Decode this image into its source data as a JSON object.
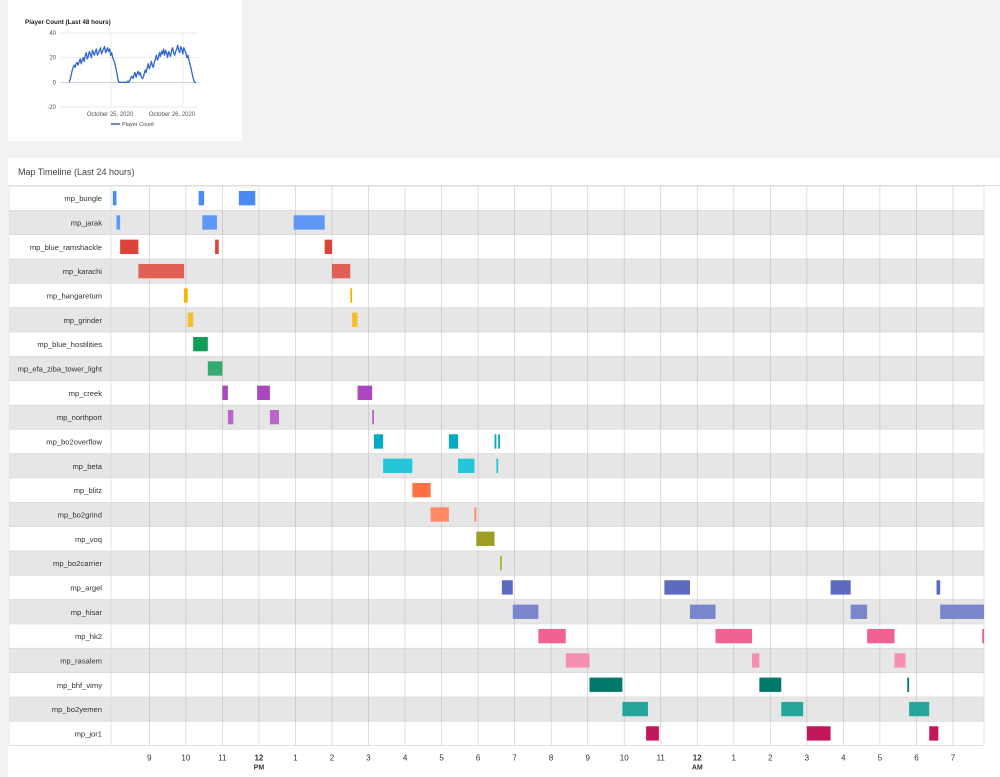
{
  "player_panel": {
    "chart_data": {
      "type": "line",
      "title": "Player Count (Last 48 hours)",
      "legend": "Player Count",
      "legend_position": "bottom",
      "y_ticks": [
        "40",
        "20",
        "0",
        "-20"
      ],
      "ylim": [
        -20,
        40
      ],
      "x_tick_labels": [
        "October 25, 2020",
        "October 26, 2020"
      ],
      "series": [
        {
          "name": "Player Count",
          "color": "#3366cc",
          "values": [
            0,
            2,
            5,
            9,
            12,
            14,
            12,
            15,
            16,
            14,
            17,
            19,
            15,
            18,
            20,
            17,
            22,
            24,
            19,
            21,
            25,
            23,
            20,
            26,
            24,
            22,
            25,
            27,
            22,
            24,
            26,
            28,
            23,
            25,
            27,
            29,
            24,
            26,
            28,
            25,
            27,
            22,
            24,
            20,
            18,
            16,
            12,
            8,
            3,
            0,
            0,
            0,
            0,
            0,
            0,
            0,
            0,
            0,
            1,
            0,
            2,
            4,
            5,
            3,
            6,
            8,
            4,
            7,
            9,
            6,
            8,
            5,
            3,
            4,
            7,
            10,
            8,
            12,
            15,
            11,
            13,
            17,
            14,
            12,
            16,
            19,
            22,
            18,
            20,
            24,
            21,
            25,
            23,
            27,
            22,
            26,
            24,
            20,
            25,
            23,
            21,
            26,
            28,
            24,
            22,
            25,
            27,
            30,
            26,
            24,
            29,
            27,
            23,
            28,
            26,
            24,
            20,
            22,
            18,
            15,
            12,
            8,
            4,
            1,
            0,
            0
          ]
        }
      ]
    }
  },
  "timeline_panel": {
    "title": "Map Timeline (Last 24 hours)",
    "chart_data": {
      "type": "bar",
      "subtype": "timeline",
      "x_ticks": [
        {
          "label": "9",
          "h": 9
        },
        {
          "label": "10",
          "h": 10
        },
        {
          "label": "11",
          "h": 11
        },
        {
          "label": "12",
          "h": 12,
          "sub": "PM"
        },
        {
          "label": "1",
          "h": 13
        },
        {
          "label": "2",
          "h": 14
        },
        {
          "label": "3",
          "h": 15
        },
        {
          "label": "4",
          "h": 16
        },
        {
          "label": "5",
          "h": 17
        },
        {
          "label": "6",
          "h": 18
        },
        {
          "label": "7",
          "h": 19
        },
        {
          "label": "8",
          "h": 20
        },
        {
          "label": "9",
          "h": 21
        },
        {
          "label": "10",
          "h": 22
        },
        {
          "label": "11",
          "h": 23
        },
        {
          "label": "12",
          "h": 24,
          "sub": "AM"
        },
        {
          "label": "1",
          "h": 25
        },
        {
          "label": "2",
          "h": 26
        },
        {
          "label": "3",
          "h": 27
        },
        {
          "label": "4",
          "h": 28
        },
        {
          "label": "5",
          "h": 29
        },
        {
          "label": "6",
          "h": 30
        },
        {
          "label": "7",
          "h": 31
        }
      ],
      "xlim": [
        7.95,
        31.85
      ],
      "rows": [
        {
          "label": "mp_bungle",
          "color": "#4a8af4",
          "segments": [
            [
              8.0,
              8.1
            ],
            [
              10.35,
              10.5
            ],
            [
              11.45,
              11.9
            ]
          ]
        },
        {
          "label": "mp_jarak",
          "color": "#5e97f6",
          "segments": [
            [
              8.1,
              8.2
            ],
            [
              10.45,
              10.85
            ],
            [
              12.95,
              13.8
            ]
          ]
        },
        {
          "label": "mp_blue_ramshackle",
          "color": "#db4437",
          "segments": [
            [
              8.2,
              8.7
            ],
            [
              10.8,
              10.9
            ],
            [
              13.8,
              14.0
            ]
          ]
        },
        {
          "label": "mp_karachi",
          "color": "#e06055",
          "segments": [
            [
              8.7,
              9.95
            ],
            [
              14.0,
              14.5
            ]
          ]
        },
        {
          "label": "mp_hangaretum",
          "color": "#f4b400",
          "segments": [
            [
              9.95,
              10.05
            ],
            [
              14.5,
              14.55
            ]
          ]
        },
        {
          "label": "mp_grinder",
          "color": "#f6bf26",
          "segments": [
            [
              10.05,
              10.2
            ],
            [
              14.55,
              14.7
            ]
          ]
        },
        {
          "label": "mp_blue_hostilities",
          "color": "#0f9d58",
          "segments": [
            [
              10.2,
              10.6
            ]
          ]
        },
        {
          "label": "mp_efa_ziba_tower_light",
          "color": "#33ac71",
          "segments": [
            [
              10.6,
              11.0
            ]
          ]
        },
        {
          "label": "mp_creek",
          "color": "#ab47bc",
          "segments": [
            [
              11.0,
              11.15
            ],
            [
              11.95,
              12.3
            ],
            [
              14.7,
              15.1
            ]
          ]
        },
        {
          "label": "mp_northport",
          "color": "#ba68c8",
          "segments": [
            [
              11.15,
              11.3
            ],
            [
              12.3,
              12.55
            ],
            [
              15.1,
              15.15
            ]
          ]
        },
        {
          "label": "mp_bo2overflow",
          "color": "#00acc1",
          "segments": [
            [
              15.15,
              15.4
            ],
            [
              17.2,
              17.45
            ],
            [
              18.45,
              18.5
            ],
            [
              18.55,
              18.6
            ]
          ]
        },
        {
          "label": "mp_beta",
          "color": "#26c6da",
          "segments": [
            [
              15.4,
              16.2
            ],
            [
              17.45,
              17.9
            ],
            [
              18.5,
              18.55
            ]
          ]
        },
        {
          "label": "mp_blitz",
          "color": "#ff7043",
          "segments": [
            [
              16.2,
              16.7
            ]
          ]
        },
        {
          "label": "mp_bo2grind",
          "color": "#ff8a65",
          "segments": [
            [
              16.7,
              17.2
            ],
            [
              17.9,
              17.95
            ]
          ]
        },
        {
          "label": "mp_voq",
          "color": "#9e9d24",
          "segments": [
            [
              17.95,
              18.45
            ]
          ]
        },
        {
          "label": "mp_bo2carrier",
          "color": "#afb42b",
          "segments": [
            [
              18.6,
              18.65
            ]
          ]
        },
        {
          "label": "mp_argel",
          "color": "#5c6bc0",
          "segments": [
            [
              18.65,
              18.95
            ],
            [
              23.1,
              23.8
            ],
            [
              27.65,
              28.2
            ],
            [
              30.55,
              30.65
            ]
          ]
        },
        {
          "label": "mp_hisar",
          "color": "#7986cb",
          "segments": [
            [
              18.95,
              19.65
            ],
            [
              23.8,
              24.5
            ],
            [
              28.2,
              28.65
            ],
            [
              30.65,
              32.0
            ]
          ]
        },
        {
          "label": "mp_hk2",
          "color": "#f06292",
          "segments": [
            [
              19.65,
              20.4
            ],
            [
              24.5,
              25.5
            ],
            [
              28.65,
              29.4
            ],
            [
              31.8,
              31.85
            ]
          ]
        },
        {
          "label": "mp_rasalem",
          "color": "#f48fb1",
          "segments": [
            [
              20.4,
              21.05
            ],
            [
              25.5,
              25.7
            ],
            [
              29.4,
              29.7
            ]
          ]
        },
        {
          "label": "mp_bhf_vimy",
          "color": "#00796b",
          "segments": [
            [
              21.05,
              21.95
            ],
            [
              25.7,
              26.3
            ],
            [
              29.75,
              29.8
            ]
          ]
        },
        {
          "label": "mp_bo2yemen",
          "color": "#26a69a",
          "segments": [
            [
              21.95,
              22.65
            ],
            [
              26.3,
              26.9
            ],
            [
              29.8,
              30.35
            ]
          ]
        },
        {
          "label": "mp_jor1",
          "color": "#c2185b",
          "segments": [
            [
              22.6,
              22.95
            ],
            [
              27.0,
              27.65
            ],
            [
              30.35,
              30.6
            ]
          ]
        }
      ]
    }
  }
}
